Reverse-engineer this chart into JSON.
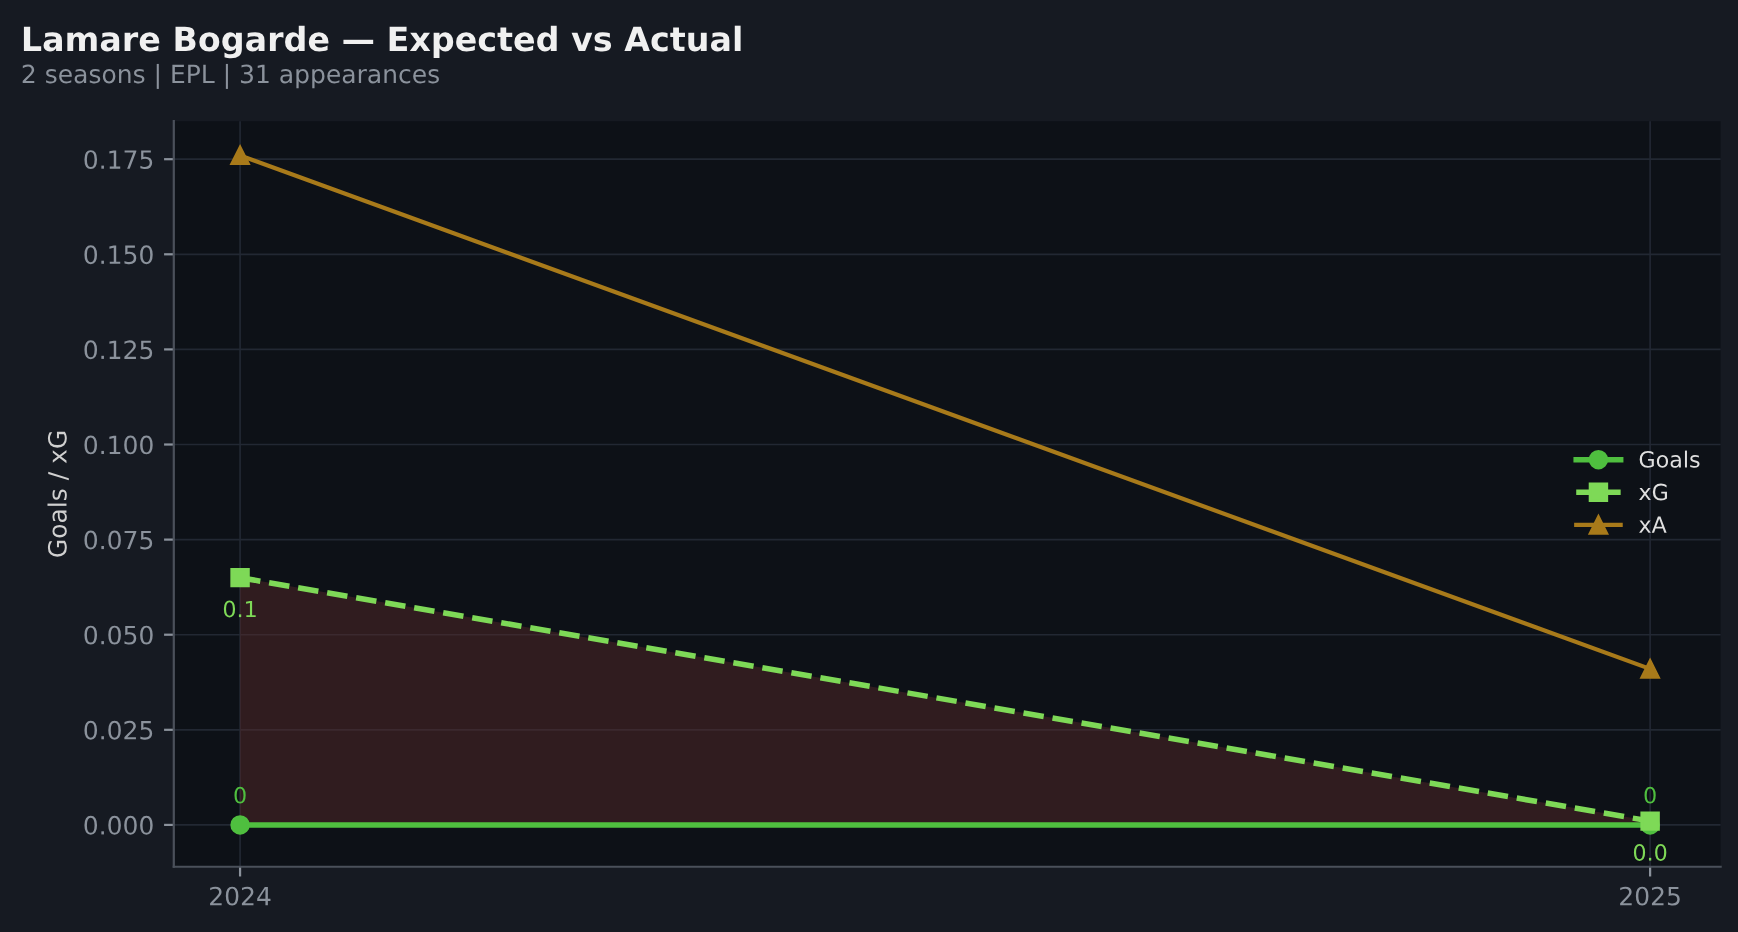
{
  "chart_data": {
    "type": "line",
    "title": "Lamare Bogarde — Expected vs Actual",
    "subtitle": "2 seasons | EPL | 31 appearances",
    "ylabel": "Goals / xG",
    "x": [
      2024,
      2025
    ],
    "xlim": [
      2023.953,
      2025.05
    ],
    "xticks": [
      2024,
      2025
    ],
    "series": [
      {
        "name": "Goals",
        "color": "#4fbf3f",
        "values": [
          0,
          0
        ],
        "marker": "circle",
        "line_style": "solid",
        "value_labels": [
          "0",
          "0"
        ]
      },
      {
        "name": "xG",
        "color": "#7ed957",
        "values": [
          0.065,
          0.001
        ],
        "marker": "square",
        "line_style": "dashed",
        "value_labels": [
          "0.1",
          "0.0"
        ],
        "lower": [
          0,
          0
        ],
        "upper": [
          0.065,
          0.001
        ]
      },
      {
        "name": "xA",
        "color": "#a87a1a",
        "values": [
          0.176,
          0.041
        ],
        "marker": "triangle",
        "line_style": "solid"
      }
    ],
    "ylim": [
      -0.011,
      0.185
    ],
    "yticks": [
      {
        "value": 0,
        "label": "0.000"
      },
      0.025,
      {
        "value": 0.05,
        "label": "0.050"
      },
      0.075,
      {
        "value": 0.1,
        "label": "0.100"
      },
      0.125,
      {
        "value": 0.15,
        "label": "0.150"
      },
      0.175
    ],
    "grid": true,
    "legend": "right"
  }
}
